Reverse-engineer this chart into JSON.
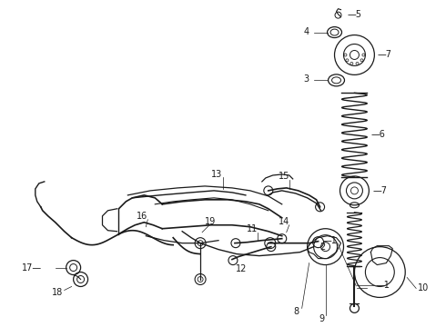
{
  "background_color": "#ffffff",
  "line_color": "#1a1a1a",
  "fig_width": 4.9,
  "fig_height": 3.6,
  "dpi": 100,
  "label_fontsize": 7.0
}
